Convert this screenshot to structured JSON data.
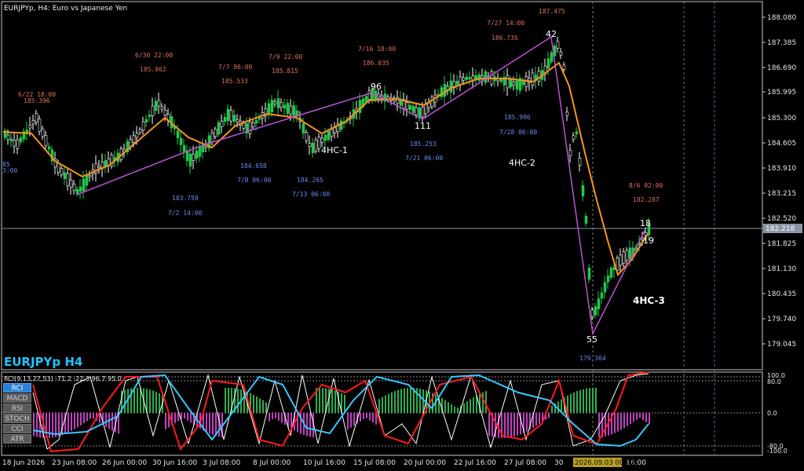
{
  "header": {
    "title": "EURJPYp, H4:  Euro vs Japanese Yen",
    "watermark": "EURJPYp H4",
    "indicator_label": "RCI(9,13,27,53) -71.2 -22.3 96.7 95.0"
  },
  "indicator_buttons": [
    {
      "label": "RCI",
      "active": true
    },
    {
      "label": "MACD",
      "active": false
    },
    {
      "label": "RSI",
      "active": false
    },
    {
      "label": "STOCH",
      "active": false
    },
    {
      "label": "CCI",
      "active": false
    },
    {
      "label": "ATR",
      "active": false
    }
  ],
  "price_axis": {
    "labels": [
      "188.080",
      "187.385",
      "186.690",
      "185.995",
      "185.300",
      "184.605",
      "183.910",
      "183.215",
      "182.520",
      "181.825",
      "181.130",
      "180.435",
      "179.740",
      "179.045"
    ],
    "current_price": "182.218"
  },
  "indicator_axis": {
    "labels": [
      "100.0",
      "80.0",
      "0.0",
      "-80.0",
      "-100.0"
    ]
  },
  "time_axis": {
    "labels": [
      "18 Jun 2026",
      "23 Jun 08:00",
      "26 Jun 00:00",
      "30 Jun 16:00",
      "3 Jul 08:00",
      "8 Jul 00:00",
      "10 Jul 16:00",
      "15 Jul 08:00",
      "20 Jul 00:00",
      "22 Jul 16:00",
      "27 Jul 08:00",
      "30",
      "16:00"
    ],
    "highlighted": "2026.09.03 00:00"
  },
  "annotations": {
    "highs": [
      {
        "date": "6/22 18:00",
        "price": "185.396"
      },
      {
        "date": "6/30 22:00",
        "price": "185.862"
      },
      {
        "date": "7/7 06:00",
        "price": "185.533"
      },
      {
        "date": "7/9 22:00",
        "price": "185.815"
      },
      {
        "date": "7/16 18:00",
        "price": "186.035"
      },
      {
        "date": "7/27 14:00",
        "price": "186.735"
      },
      {
        "date": "",
        "price": "187.475"
      },
      {
        "date": "8/6 02:00",
        "price": "182.287"
      }
    ],
    "lows": [
      {
        "date": "7/2 14:00",
        "price": "183.759"
      },
      {
        "date": "7/8 06:00",
        "price": "184.658"
      },
      {
        "date": "7/13 06:00",
        "price": "184.265"
      },
      {
        "date": "7/21 06:00",
        "price": "185.253"
      },
      {
        "date": "7/28 06:00",
        "price": "185.996"
      },
      {
        "date": "",
        "price": "179.364"
      }
    ],
    "edge_fragments": [
      "85",
      "3:00"
    ],
    "wave_counts": [
      "96",
      "111",
      "42",
      "55",
      "18",
      "19"
    ],
    "patterns": [
      "4HC-1",
      "4HC-2",
      "4HC-3"
    ]
  },
  "colors": {
    "background": "#000000",
    "frame": "#c8c8c8",
    "ma_line": "#f7931e",
    "zigzag": "#c050d8",
    "high_label": "#e0705a",
    "low_label": "#6a8cf0",
    "watermark": "#1fc4ff",
    "rci_fast": "#ffffff",
    "rci_mid": "#ff1a1a",
    "rci_slow": "#36c8ff",
    "hist_pos": "#2fae4f",
    "hist_neg": "#c040c0",
    "highlight_bg": "#b8a020"
  }
}
